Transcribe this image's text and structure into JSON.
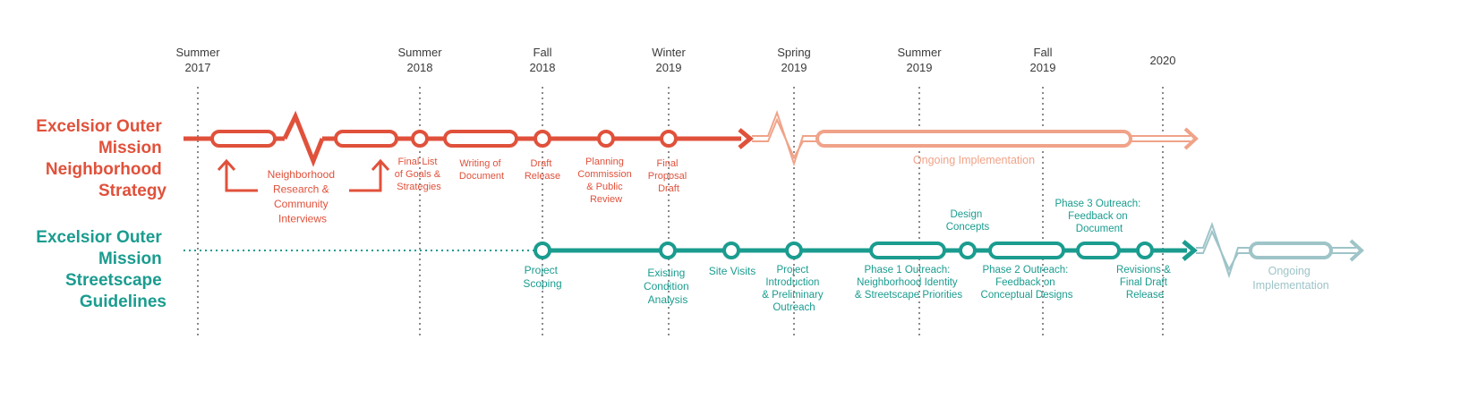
{
  "colors": {
    "strategy": "#e0513b",
    "strategy_light": "#f0a389",
    "streetscape": "#1a9c8f",
    "streetscape_light": "#9ec4c8",
    "tick_text": "#3a3a3a",
    "guide": "#8a8a8a"
  },
  "ticks": [
    {
      "line1": "Summer",
      "line2": "2017"
    },
    {
      "line1": "Summer",
      "line2": "2018"
    },
    {
      "line1": "Fall",
      "line2": "2018"
    },
    {
      "line1": "Winter",
      "line2": "2019"
    },
    {
      "line1": "Spring",
      "line2": "2019"
    },
    {
      "line1": "Summer",
      "line2": "2019"
    },
    {
      "line1": "Fall",
      "line2": "2019"
    },
    {
      "line1": "",
      "line2": "2020"
    }
  ],
  "rows": {
    "strategy": {
      "label": [
        "Excelsior Outer",
        "Mission",
        "Neighborhood",
        "Strategy"
      ],
      "milestones": {
        "research": [
          "Neighborhood",
          "Research &",
          "Community",
          "Interviews"
        ],
        "final_list": [
          "Final List",
          "of Goals &",
          "Strategies"
        ],
        "writing": [
          "Writing of",
          "Document"
        ],
        "draft_release": [
          "Draft",
          "Release"
        ],
        "planning": [
          "Planning",
          "Commission",
          "& Public",
          "Review"
        ],
        "final_proposal": [
          "Final",
          "Proposal",
          "Draft"
        ],
        "ongoing": [
          "Ongoing Implementation"
        ]
      }
    },
    "streetscape": {
      "label": [
        "Excelsior Outer",
        "Mission",
        "Streetscape",
        "Guidelines"
      ],
      "milestones": {
        "scoping": [
          "Project",
          "Scoping"
        ],
        "existing": [
          "Existing",
          "Condition",
          "Analysis"
        ],
        "site_visits": [
          "Site Visits"
        ],
        "intro": [
          "Project",
          "Introduction",
          "& Preliminary",
          "Outreach"
        ],
        "phase1": [
          "Phase 1 Outreach:",
          "Neighborhood Identity",
          "& Streetscape Priorities"
        ],
        "design": [
          "Design",
          "Concepts"
        ],
        "phase2": [
          "Phase 2 Outreach:",
          "Feedback on",
          "Conceptual Designs"
        ],
        "phase3": [
          "Phase 3 Outreach:",
          "Feedback on",
          "Document"
        ],
        "revisions": [
          "Revisions &",
          "Final Draft",
          "Release"
        ],
        "ongoing": [
          "Ongoing",
          "Implementation"
        ]
      }
    }
  }
}
